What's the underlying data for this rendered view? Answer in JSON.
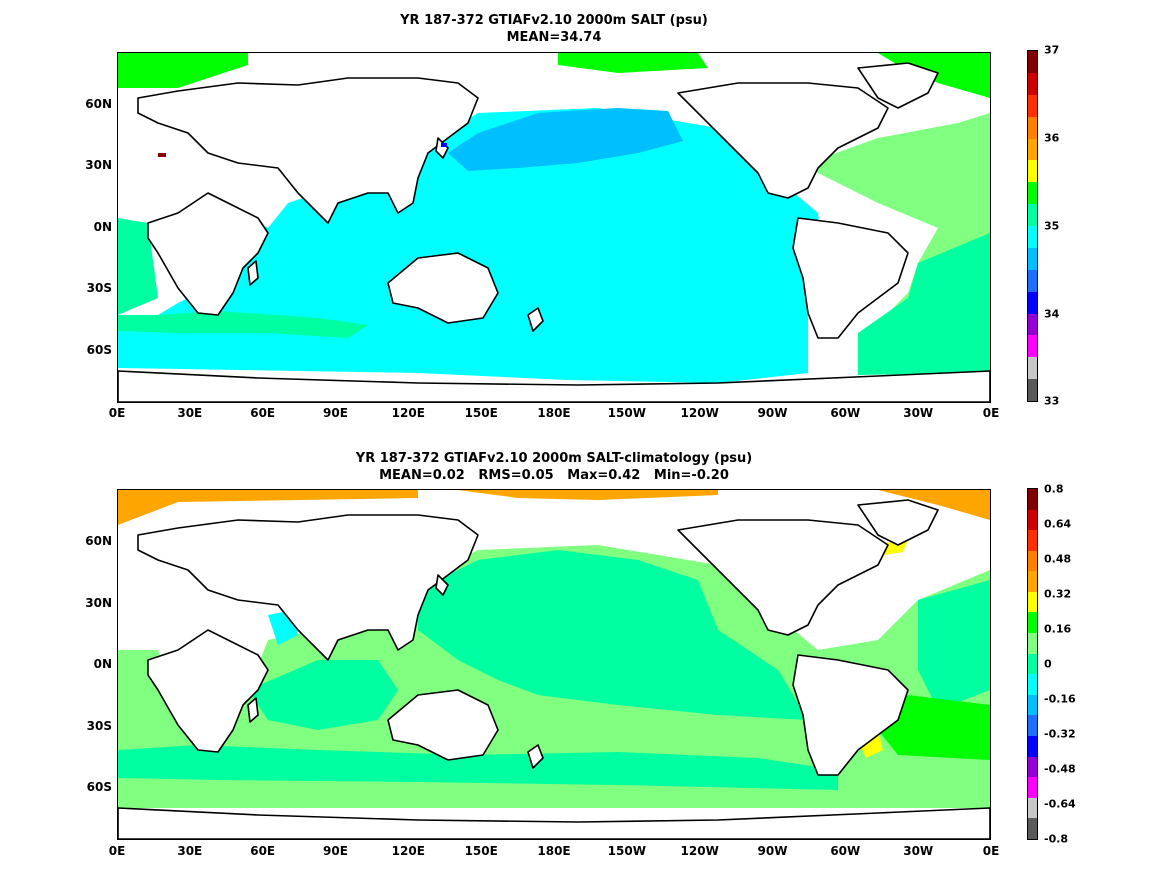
{
  "panels": [
    {
      "title_line1": "YR 187-372 GTIAFv2.10 2000m SALT (psu)",
      "title_line2": "MEAN=34.74",
      "x_ticks": [
        "0E",
        "30E",
        "60E",
        "90E",
        "120E",
        "150E",
        "180E",
        "150W",
        "120W",
        "90W",
        "60W",
        "30W",
        "0E"
      ],
      "y_ticks": [
        "60N",
        "30N",
        "0N",
        "30S",
        "60S"
      ],
      "colorbar_labels": [
        "37",
        "36",
        "35",
        "34",
        "33"
      ],
      "colorbar_colors": [
        "#5a5a5a",
        "#c8c8c8",
        "#ff00ff",
        "#9400d3",
        "#0000ff",
        "#1e6eff",
        "#00bfff",
        "#00ffff",
        "#00ffa0",
        "#00ff00",
        "#ffff00",
        "#ffa500",
        "#ff7f00",
        "#ff3000",
        "#cc0000",
        "#800000"
      ],
      "regions": {
        "ocean_base": "#00ffff",
        "north_pacific": "#00bfff",
        "southern_band": "#00ffa0",
        "atlantic": "#80ff80",
        "arctic": "#00ff00",
        "med": "#8b0000",
        "japan_sea": "#0000ff"
      }
    },
    {
      "title_line1": "YR 187-372 GTIAFv2.10 2000m SALT-climatology (psu)",
      "title_line2": "MEAN=0.02   RMS=0.05   Max=0.42   Min=-0.20",
      "x_ticks": [
        "0E",
        "30E",
        "60E",
        "90E",
        "120E",
        "150E",
        "180E",
        "150W",
        "120W",
        "90W",
        "60W",
        "30W",
        "0E"
      ],
      "y_ticks": [
        "60N",
        "30N",
        "0N",
        "30S",
        "60S"
      ],
      "colorbar_labels": [
        "0.8",
        "0.64",
        "0.48",
        "0.32",
        "0.16",
        "0",
        "-0.16",
        "-0.32",
        "-0.48",
        "-0.64",
        "-0.8"
      ],
      "colorbar_colors": [
        "#5a5a5a",
        "#c8c8c8",
        "#ff00ff",
        "#9400d3",
        "#0000ff",
        "#1e6eff",
        "#00bfff",
        "#00ffff",
        "#00ffa0",
        "#80ff80",
        "#00ff00",
        "#ffff00",
        "#ffa500",
        "#ff7f00",
        "#ff3000",
        "#cc0000",
        "#800000"
      ],
      "regions": {
        "ocean_base": "#80ff80",
        "pacific_mid": "#00ffa0",
        "arabian": "#00ffff",
        "atlantic_green": "#00ff00",
        "arctic": "#ffa500",
        "yellow": "#ffff00"
      }
    }
  ]
}
